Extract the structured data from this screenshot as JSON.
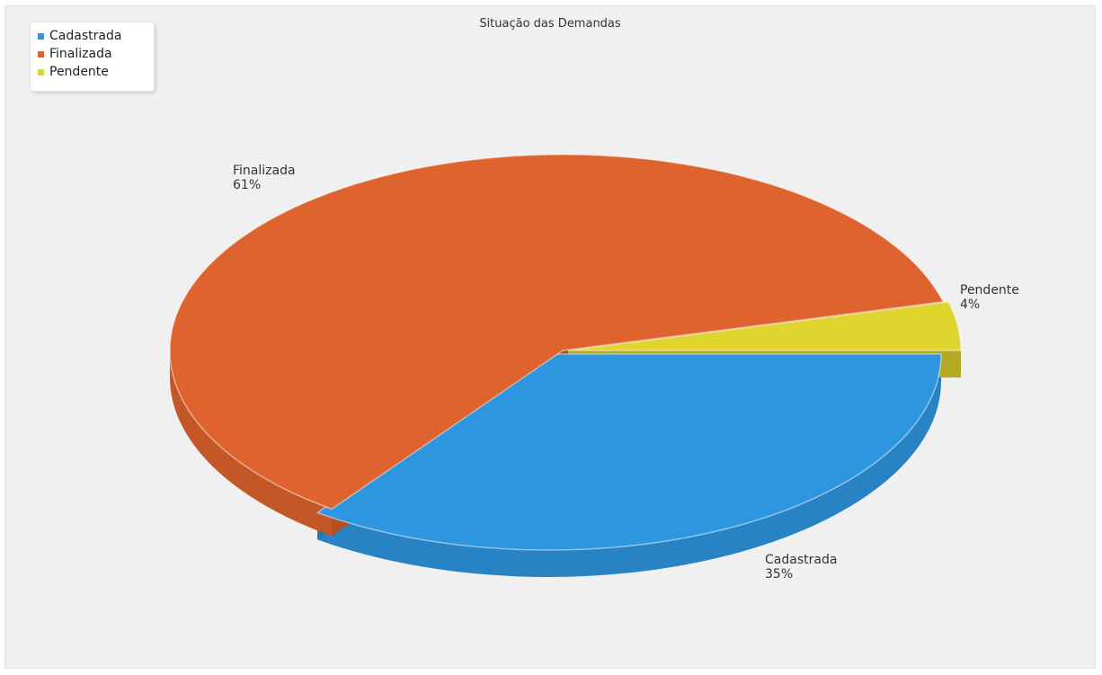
{
  "chart_data": {
    "type": "pie",
    "title": "Situação das Demandas",
    "legend_placement": "top-left",
    "slices": [
      {
        "label": "Cadastrada",
        "value": 35,
        "percent_label": "35%",
        "color": "#2e95df"
      },
      {
        "label": "Finalizada",
        "value": 61,
        "percent_label": "61%",
        "color": "#de632e"
      },
      {
        "label": "Pendente",
        "value": 4,
        "percent_label": "4%",
        "color": "#dfd52e"
      }
    ]
  }
}
